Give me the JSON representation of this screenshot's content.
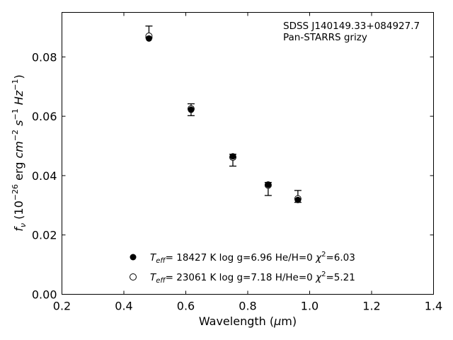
{
  "chart_data": {
    "type": "scatter",
    "title": "",
    "xlabel": "Wavelength (µm)",
    "ylabel": "f_ν (10^-26 erg cm^-2 s^-1 Hz^-1)",
    "xlim": [
      0.2,
      1.4
    ],
    "ylim": [
      0.0,
      0.095
    ],
    "x_ticks": [
      0.2,
      0.4,
      0.6,
      0.8,
      1.0,
      1.2,
      1.4
    ],
    "x_tick_labels": [
      "0.2",
      "0.4",
      "0.6",
      "0.8",
      "1.0",
      "1.2",
      "1.4"
    ],
    "y_ticks": [
      0.0,
      0.02,
      0.04,
      0.06,
      0.08
    ],
    "y_tick_labels": [
      "0.00",
      "0.02",
      "0.04",
      "0.06",
      "0.08"
    ],
    "grid": false,
    "legend_position": "bottom-center",
    "annotations": [
      "SDSS J140149.33+084927.7",
      "Pan-STARRS grizy"
    ],
    "observed": {
      "x": [
        0.481,
        0.617,
        0.752,
        0.866,
        0.962
      ],
      "y": [
        0.088,
        0.0622,
        0.0452,
        0.0355,
        0.033
      ],
      "yerr_low": [
        0.0016,
        0.002,
        0.002,
        0.0022,
        0.002
      ],
      "yerr_high": [
        0.0024,
        0.002,
        0.002,
        0.0022,
        0.002
      ]
    },
    "series": [
      {
        "name": "T_eff= 18427 K  log g=6.96  He/H=0  χ²=6.03",
        "marker": "filled-circle",
        "color": "#000000",
        "x": [
          0.481,
          0.617,
          0.752,
          0.866,
          0.962
        ],
        "y": [
          0.0862,
          0.0622,
          0.0465,
          0.037,
          0.0318
        ]
      },
      {
        "name": "T_eff= 23061 K  log g=7.18  H/He=0  χ²=5.21",
        "marker": "open-circle",
        "color": "#000000",
        "x": [
          0.481,
          0.617,
          0.752,
          0.866,
          0.962
        ],
        "y": [
          0.087,
          0.0625,
          0.0462,
          0.0368,
          0.0322
        ]
      }
    ]
  }
}
